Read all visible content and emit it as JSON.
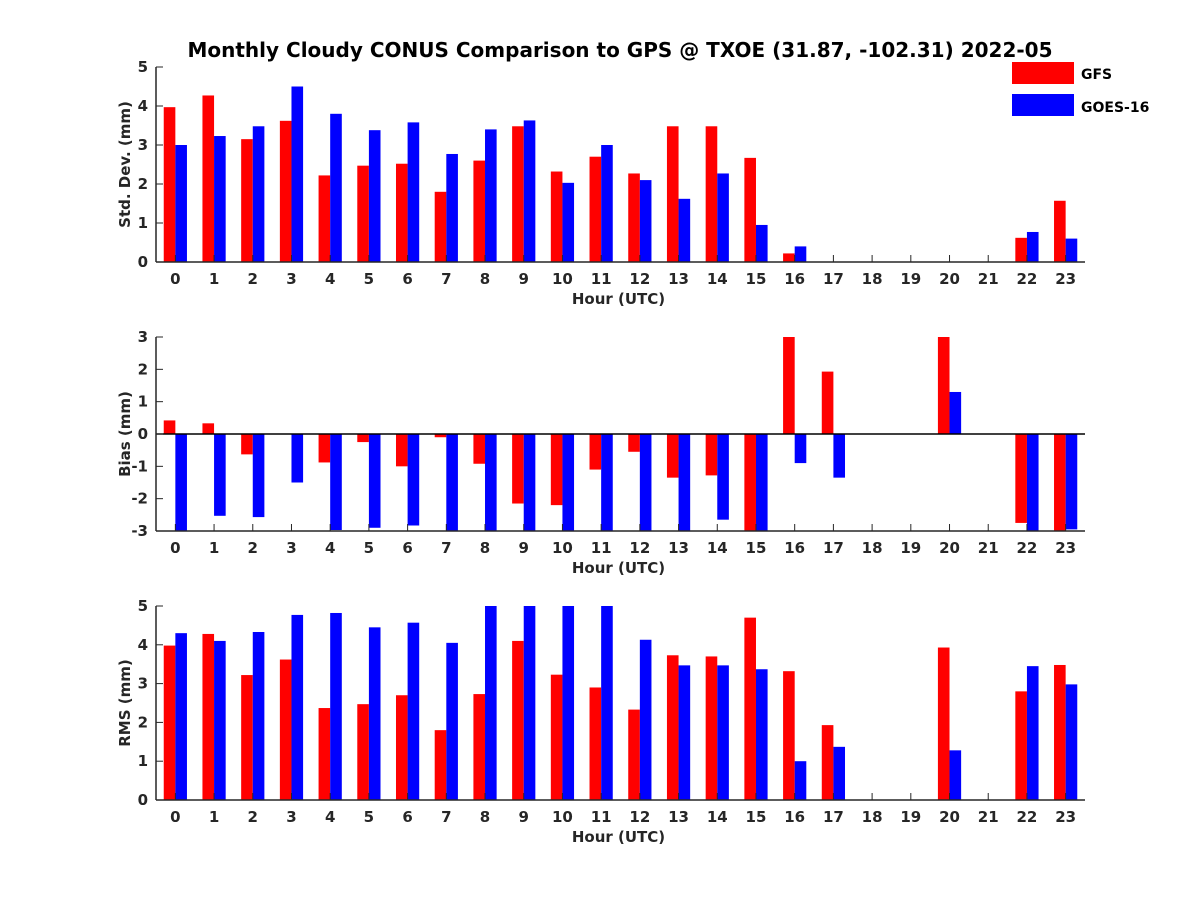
{
  "chart_data": {
    "title": "Monthly Cloudy CONUS Comparison to GPS @ TXOE (31.87, -102.31) 2022-05",
    "legend": [
      {
        "name": "GFS",
        "color": "#ff0000"
      },
      {
        "name": "GOES-16",
        "color": "#0000ff"
      }
    ],
    "legend_position": "top-right",
    "panels": [
      {
        "id": "std",
        "type": "bar",
        "ylabel": "Std. Dev. (mm)",
        "xlabel": "Hour (UTC)",
        "ylim": [
          0,
          5
        ],
        "yticks": [
          "0",
          "1",
          "2",
          "3",
          "4",
          "5"
        ],
        "categories": [
          "0",
          "1",
          "2",
          "3",
          "4",
          "5",
          "6",
          "7",
          "8",
          "9",
          "10",
          "11",
          "12",
          "13",
          "14",
          "15",
          "16",
          "17",
          "18",
          "19",
          "20",
          "21",
          "22",
          "23"
        ],
        "zero_line": false,
        "series": [
          {
            "name": "GFS",
            "color": "#ff0000",
            "values": [
              3.97,
              4.27,
              3.15,
              3.62,
              2.22,
              2.47,
              2.52,
              1.8,
              2.6,
              3.48,
              2.32,
              2.7,
              2.27,
              3.48,
              3.48,
              2.67,
              0.22,
              0,
              0,
              0,
              0,
              0,
              0.62,
              1.57
            ]
          },
          {
            "name": "GOES-16",
            "color": "#0000ff",
            "values": [
              3.0,
              3.23,
              3.48,
              4.5,
              3.8,
              3.38,
              3.58,
              2.77,
              3.4,
              3.63,
              2.03,
              3.0,
              2.1,
              1.62,
              2.27,
              0.95,
              0.4,
              0,
              0,
              0,
              0,
              0,
              0.77,
              0.6
            ]
          }
        ]
      },
      {
        "id": "bias",
        "type": "bar",
        "ylabel": "Bias (mm)",
        "xlabel": "Hour (UTC)",
        "ylim": [
          -3,
          3
        ],
        "yticks": [
          "-3",
          "-2",
          "-1",
          "0",
          "1",
          "2",
          "3"
        ],
        "categories": [
          "0",
          "1",
          "2",
          "3",
          "4",
          "5",
          "6",
          "7",
          "8",
          "9",
          "10",
          "11",
          "12",
          "13",
          "14",
          "15",
          "16",
          "17",
          "18",
          "19",
          "20",
          "21",
          "22",
          "23"
        ],
        "zero_line": true,
        "series": [
          {
            "name": "GFS",
            "color": "#ff0000",
            "values": [
              0.42,
              0.33,
              -0.63,
              0,
              -0.88,
              -0.25,
              -1.0,
              -0.1,
              -0.92,
              -2.15,
              -2.2,
              -1.1,
              -0.55,
              -1.35,
              -1.28,
              -3.0,
              3.0,
              1.93,
              0,
              0,
              3.0,
              0,
              -2.75,
              -3.0
            ]
          },
          {
            "name": "GOES-16",
            "color": "#0000ff",
            "values": [
              -3.0,
              -2.53,
              -2.57,
              -1.5,
              -2.97,
              -2.9,
              -2.83,
              -3.0,
              -3.0,
              -3.0,
              -3.0,
              -3.0,
              -3.0,
              -3.0,
              -2.65,
              -3.0,
              -0.9,
              -1.35,
              0,
              0,
              1.3,
              0,
              -3.0,
              -2.95
            ]
          }
        ]
      },
      {
        "id": "rms",
        "type": "bar",
        "ylabel": "RMS (mm)",
        "xlabel": "Hour (UTC)",
        "ylim": [
          0,
          5
        ],
        "yticks": [
          "0",
          "1",
          "2",
          "3",
          "4",
          "5"
        ],
        "categories": [
          "0",
          "1",
          "2",
          "3",
          "4",
          "5",
          "6",
          "7",
          "8",
          "9",
          "10",
          "11",
          "12",
          "13",
          "14",
          "15",
          "16",
          "17",
          "18",
          "19",
          "20",
          "21",
          "22",
          "23"
        ],
        "zero_line": false,
        "series": [
          {
            "name": "GFS",
            "color": "#ff0000",
            "values": [
              3.98,
              4.28,
              3.22,
              3.62,
              2.37,
              2.47,
              2.7,
              1.8,
              2.73,
              4.1,
              3.23,
              2.9,
              2.33,
              3.73,
              3.7,
              4.7,
              3.32,
              1.93,
              0,
              0,
              3.93,
              0,
              2.8,
              3.48
            ]
          },
          {
            "name": "GOES-16",
            "color": "#0000ff",
            "values": [
              4.3,
              4.1,
              4.33,
              4.77,
              4.82,
              4.45,
              4.57,
              4.05,
              5.0,
              5.0,
              5.0,
              5.0,
              4.13,
              3.47,
              3.47,
              3.37,
              1.0,
              1.37,
              0,
              0,
              1.28,
              0,
              3.45,
              2.98
            ]
          }
        ]
      }
    ]
  }
}
